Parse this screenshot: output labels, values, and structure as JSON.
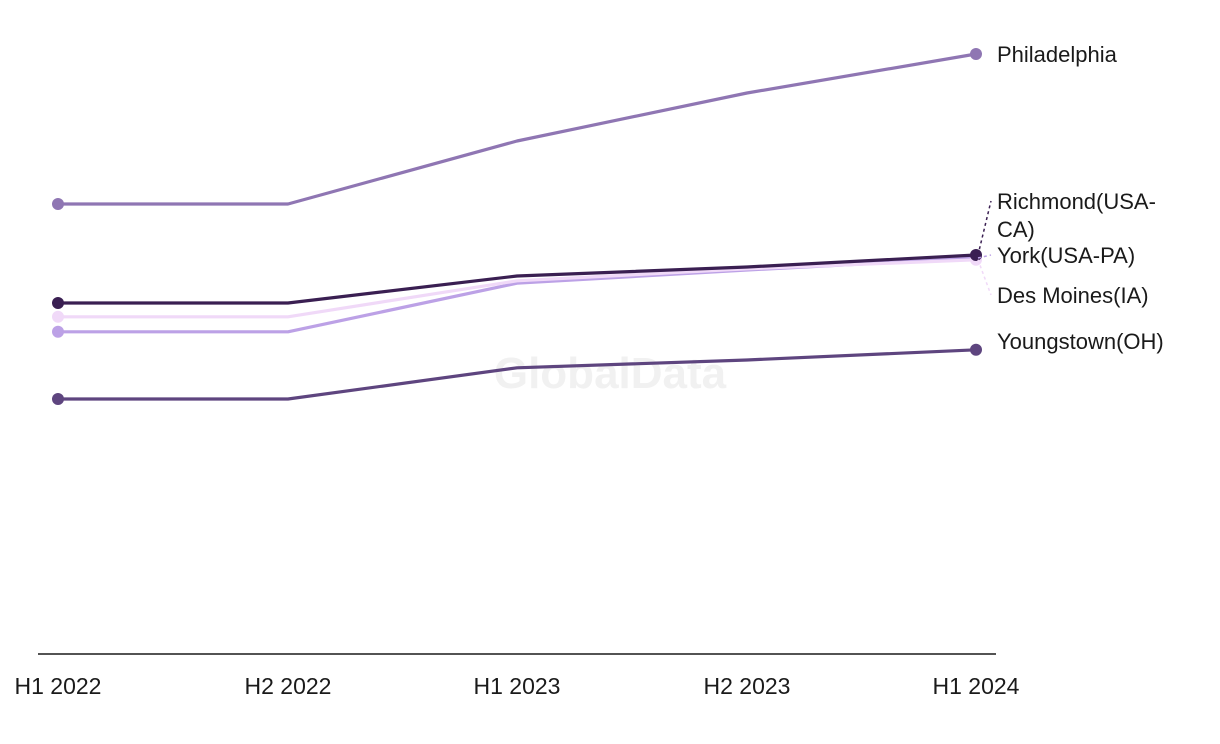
{
  "watermark": "GlobalData",
  "chart_data": {
    "type": "line",
    "categories": [
      "H1 2022",
      "H2 2022",
      "H1 2023",
      "H2 2023",
      "H1 2024"
    ],
    "ylim": [
      0,
      100
    ],
    "grid": false,
    "legend": "direct labels at line ends",
    "series": [
      {
        "name": "Philadelphia",
        "color": "#8f76b3",
        "values": [
          75,
          75,
          85.5,
          93.5,
          100
        ]
      },
      {
        "name": "Richmond(USA-CA)",
        "color": "#3a1f52",
        "values": [
          58.5,
          58.5,
          63,
          64.5,
          66.5
        ]
      },
      {
        "name": "York(USA-PA)",
        "color": "#bca1e6",
        "values": [
          53.7,
          53.7,
          61.8,
          64,
          66
        ]
      },
      {
        "name": "Des Moines(IA)",
        "color": "#f0d9f8",
        "values": [
          56.2,
          56.2,
          62.2,
          64.2,
          65.7
        ]
      },
      {
        "name": "Youngstown(OH)",
        "color": "#5e457f",
        "values": [
          42.5,
          42.5,
          47.7,
          49,
          50.7
        ]
      }
    ]
  }
}
